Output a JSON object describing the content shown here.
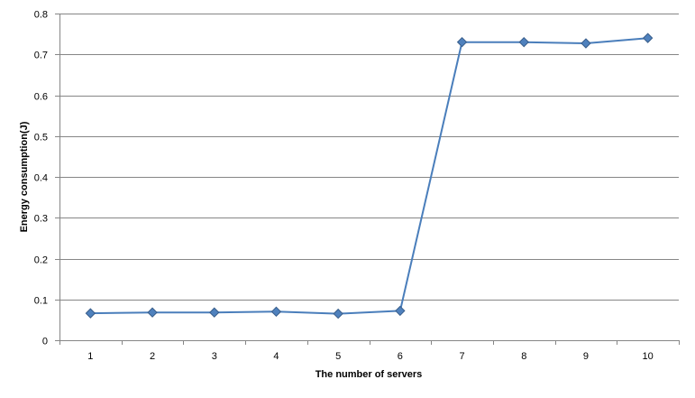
{
  "chart_data": {
    "type": "line",
    "title": "",
    "xlabel": "The number of servers",
    "ylabel": "Energy consumption(J)",
    "categories": [
      "1",
      "2",
      "3",
      "4",
      "5",
      "6",
      "7",
      "8",
      "9",
      "10"
    ],
    "series": [
      {
        "values": [
          0.066,
          0.068,
          0.068,
          0.07,
          0.065,
          0.072,
          0.73,
          0.73,
          0.727,
          0.74
        ]
      }
    ],
    "ylim": [
      0,
      0.8
    ],
    "yticks": [
      "0",
      "0.1",
      "0.2",
      "0.3",
      "0.4",
      "0.5",
      "0.6",
      "0.7",
      "0.8"
    ],
    "grid": true,
    "legend": "none",
    "colors": {
      "line": "#4a7ebb",
      "marker_fill": "#4f81bd",
      "marker_stroke": "#385d8a",
      "grid": "#868686",
      "axis": "#868686"
    }
  }
}
